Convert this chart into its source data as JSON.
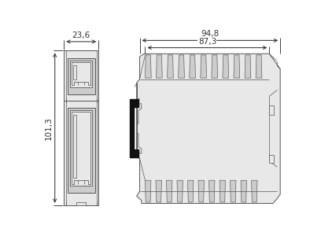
{
  "bg_color": "#ffffff",
  "lc": "#555555",
  "dc": "#333333",
  "black": "#111111",
  "light_gray": "#e8e8e8",
  "mid_gray": "#cccccc",
  "dark_gray": "#888888",
  "dim_23_6": "23,6",
  "dim_94_8": "94,8",
  "dim_87_3": "87,3",
  "dim_101_3": "101,3",
  "fs": 7.5,
  "lw": 0.7
}
